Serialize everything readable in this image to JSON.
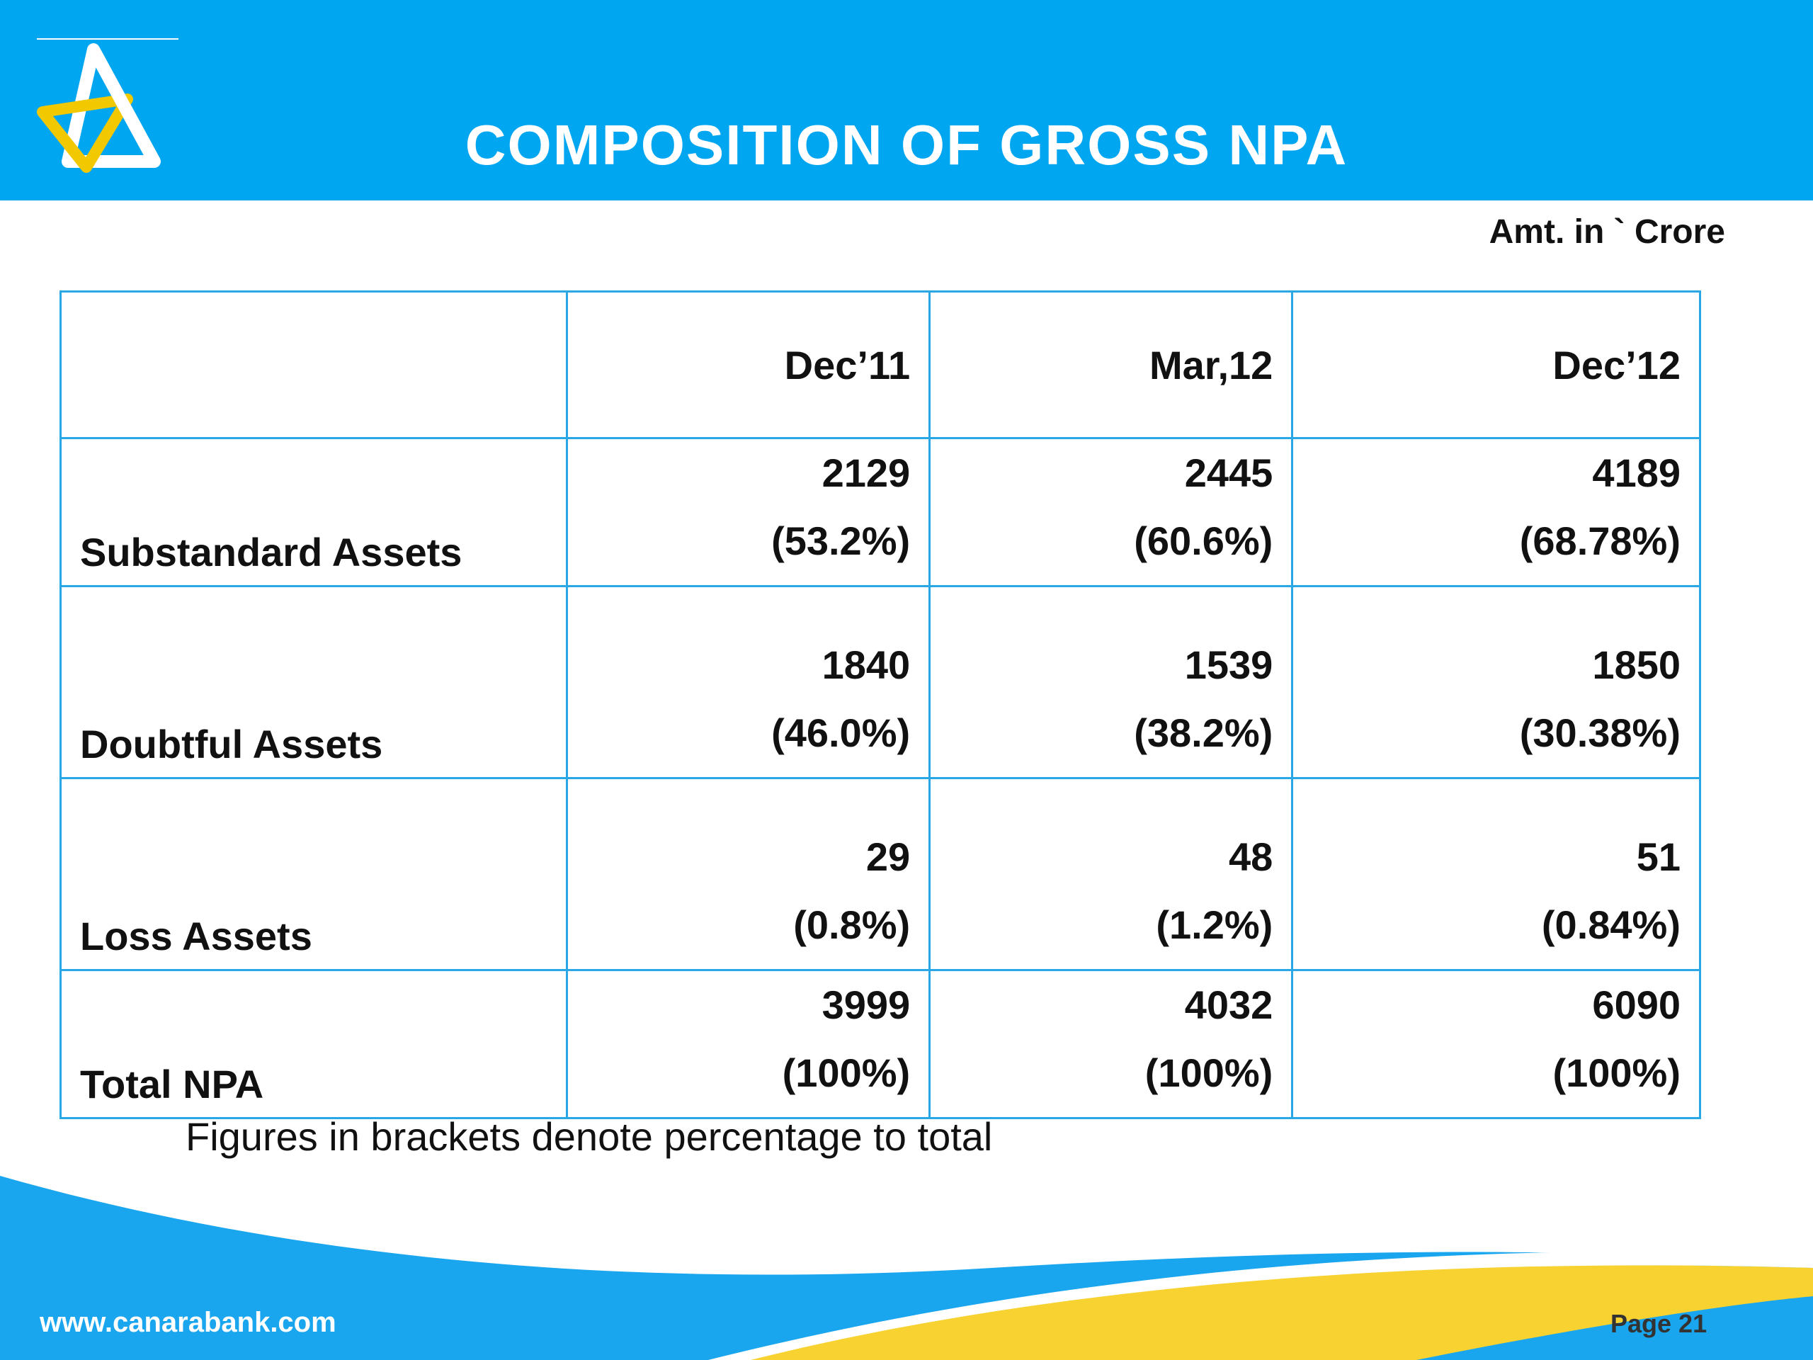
{
  "header": {
    "title": "COMPOSITION OF GROSS NPA",
    "logo_icon": "canara-bank-logo-icon"
  },
  "unit_note": "Amt. in ` Crore",
  "table": {
    "columns": [
      "Dec’11",
      "Mar,12",
      "Dec’12"
    ],
    "rows": [
      {
        "label": "Substandard Assets",
        "cells": [
          {
            "value": "2129",
            "pct": "(53.2%)"
          },
          {
            "value": "2445",
            "pct": "(60.6%)"
          },
          {
            "value": "4189",
            "pct": "(68.78%)"
          }
        ]
      },
      {
        "label": "Doubtful Assets",
        "cells": [
          {
            "value": "1840",
            "pct": "(46.0%)"
          },
          {
            "value": "1539",
            "pct": "(38.2%)"
          },
          {
            "value": "1850",
            "pct": "(30.38%)"
          }
        ]
      },
      {
        "label": "Loss Assets",
        "cells": [
          {
            "value": "29",
            "pct": "(0.8%)"
          },
          {
            "value": "48",
            "pct": "(1.2%)"
          },
          {
            "value": "51",
            "pct": "(0.84%)"
          }
        ]
      },
      {
        "label": "Total NPA",
        "cells": [
          {
            "value": "3999",
            "pct": "(100%)"
          },
          {
            "value": "4032",
            "pct": "(100%)"
          },
          {
            "value": "6090",
            "pct": "(100%)"
          }
        ]
      }
    ]
  },
  "footnote": "Figures in brackets denote percentage to total",
  "footer": {
    "website": "www.canarabank.com",
    "page": "Page  21"
  },
  "colors": {
    "header_blue": "#00a6f0",
    "table_border": "#2aa8e6",
    "swoosh_blue": "#1aa6ee",
    "swoosh_yellow": "#f7d230"
  }
}
